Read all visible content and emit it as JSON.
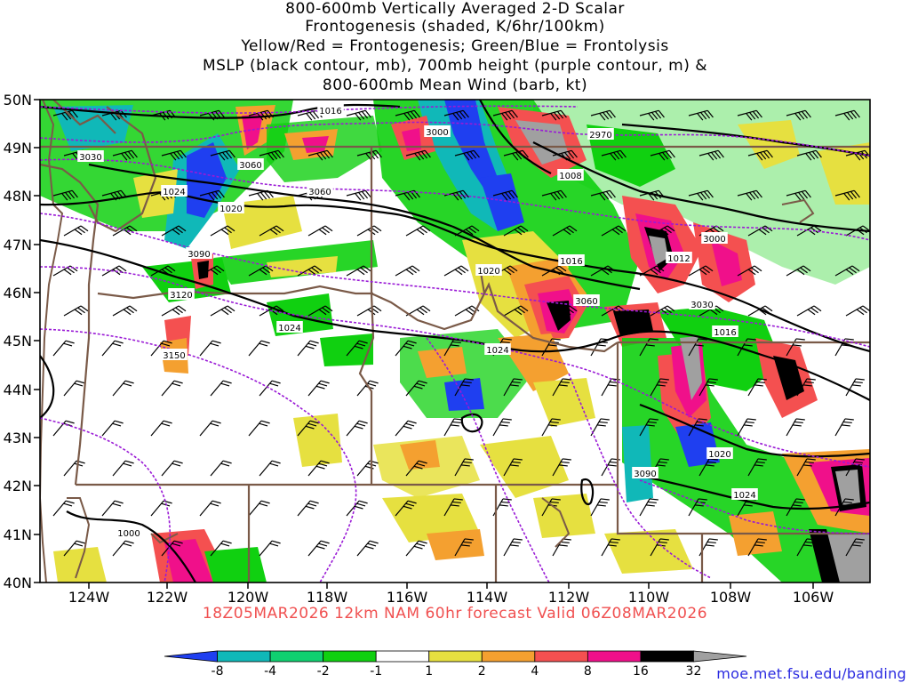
{
  "title_lines": [
    "800-600mb Vertically Averaged 2-D Scalar",
    "Frontogenesis (shaded, K/6hr/100km)",
    "Yellow/Red = Frontogenesis;  Green/Blue = Frontolysis",
    "MSLP (black contour, mb), 700mb height (purple contour, m) &",
    "800-600mb Mean Wind (barb, kt)"
  ],
  "lat_labels": [
    "50N",
    "49N",
    "48N",
    "47N",
    "46N",
    "45N",
    "44N",
    "43N",
    "42N",
    "41N",
    "40N"
  ],
  "lon_labels": [
    "124W",
    "122W",
    "120W",
    "118W",
    "116W",
    "114W",
    "112W",
    "110W",
    "108W",
    "106W"
  ],
  "mslp_labels": [
    "1016",
    "1008",
    "1024",
    "1020",
    "1016",
    "1012",
    "1016",
    "1020",
    "1024",
    "1020",
    "1024",
    "1024",
    "1000"
  ],
  "height_labels": [
    "3060",
    "3030",
    "3060",
    "3090",
    "3120",
    "3150",
    "3000",
    "2970",
    "3000",
    "3060",
    "3030",
    "3090"
  ],
  "valid_text": "18Z05MAR2026 12km NAM 60hr forecast Valid 06Z08MAR2026",
  "colorbar": {
    "labels": [
      "-8",
      "-4",
      "-2",
      "-1",
      "1",
      "2",
      "4",
      "8",
      "16",
      "32"
    ],
    "colors": [
      "#1f3ff0",
      "#10b8b8",
      "#10d070",
      "#10d010",
      "#ffffff",
      "#e6e040",
      "#f4a030",
      "#f45050",
      "#f0108a",
      "#000000",
      "#a0a0a0"
    ]
  },
  "credit": "moe.met.fsu.edu/banding"
}
